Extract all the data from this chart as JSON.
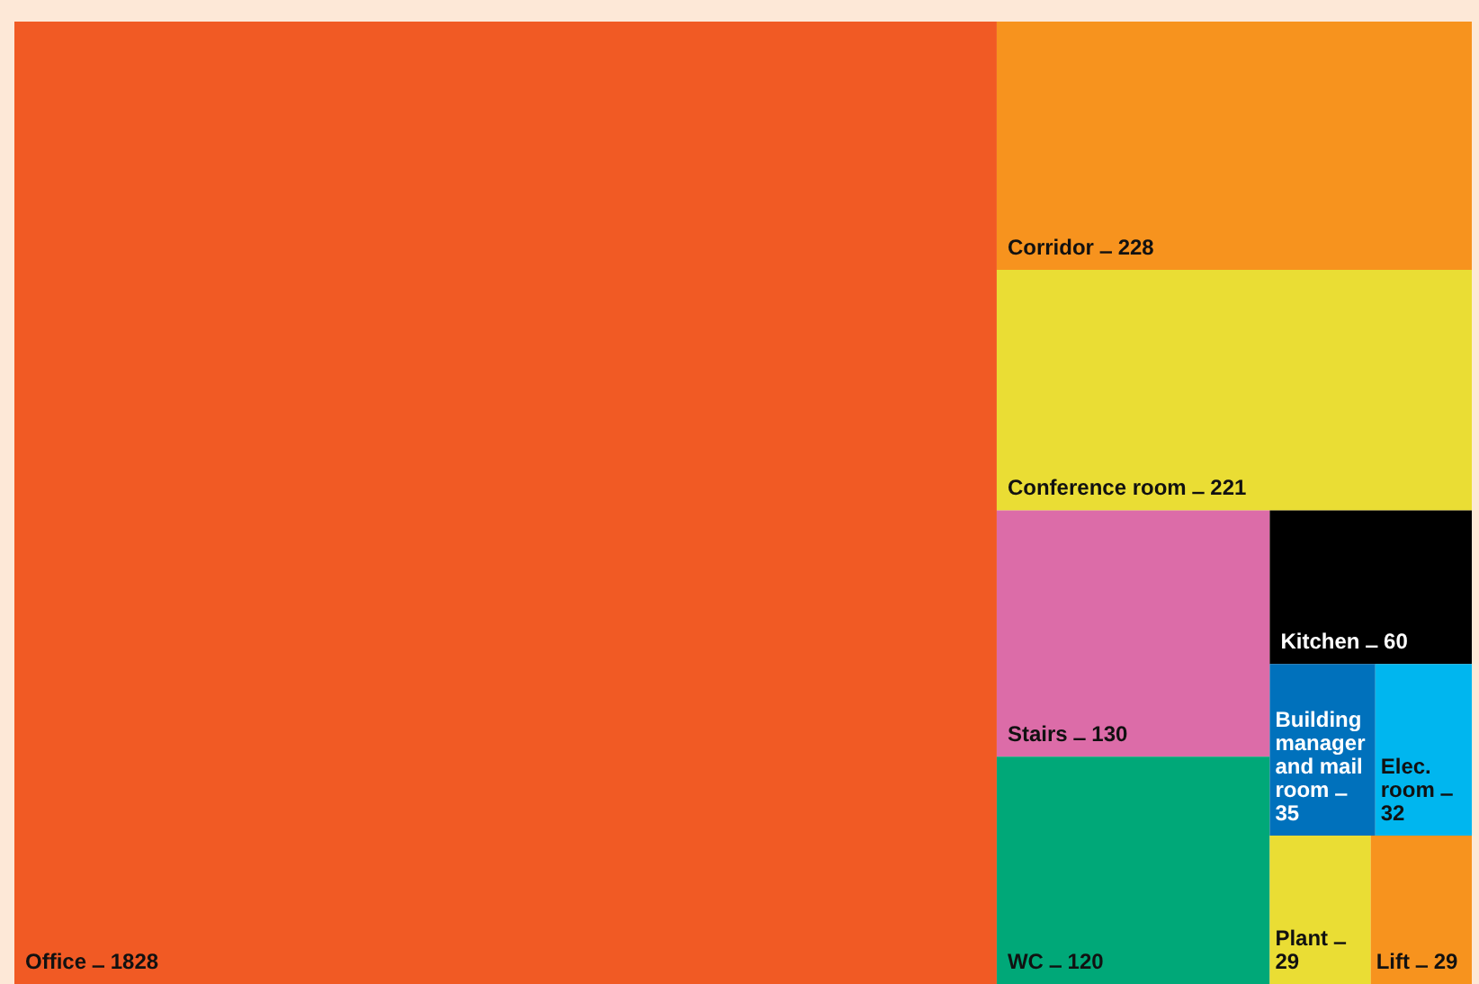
{
  "chart_data": {
    "type": "other",
    "categories": [
      "Office",
      "Corridor",
      "Conference room",
      "Stairs",
      "WC",
      "Kitchen",
      "Building manager and mail room",
      "Elec. room",
      "Plant",
      "Lift"
    ],
    "data_labels": true,
    "values": [
      1828,
      228,
      221,
      130,
      120,
      60,
      35,
      32,
      29,
      29
    ],
    "colors": [
      "#f15a24",
      "#f7931e",
      "#eadd34",
      "#dc6ca8",
      "#00a878",
      "#000000",
      "#0071bc",
      "#00b6ef",
      "#eadd34",
      "#f7931e"
    ]
  }
}
